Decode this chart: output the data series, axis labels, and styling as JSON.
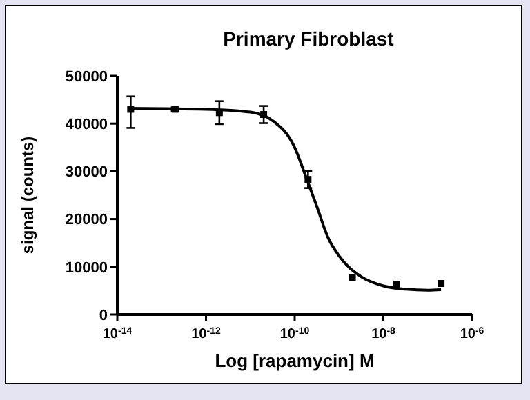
{
  "chart_data": {
    "type": "scatter",
    "title": "Primary Fibroblast",
    "xlabel": "Log [rapamycin] M",
    "ylabel": "signal (counts)",
    "log": "x",
    "xlim": [
      1e-14,
      1e-06
    ],
    "xticks": [
      {
        "value": 1e-14,
        "label": "10$^{-14}$"
      },
      {
        "value": 1e-12,
        "label": "10$^{-12}$"
      },
      {
        "value": 1e-10,
        "label": "10$^{-10}$"
      },
      {
        "value": 1e-08,
        "label": "10$^{-8}$"
      },
      {
        "value": 1e-06,
        "label": "10$^{-6}$"
      }
    ],
    "ylim": [
      0,
      50000
    ],
    "yticks": [
      0,
      10000,
      20000,
      30000,
      40000,
      50000
    ],
    "grid": false,
    "series": [
      {
        "color": "#000000",
        "marker": "square",
        "x": [
          2e-14,
          2e-13,
          2e-12,
          2e-11,
          2e-10,
          2e-09,
          2e-08,
          2e-07
        ],
        "values": [
          43000,
          43000,
          42300,
          41900,
          28300,
          7800,
          6300,
          6500
        ],
        "errors": [
          [
            39100,
            45700
          ],
          [
            42600,
            43400
          ],
          [
            39900,
            44700
          ],
          [
            40100,
            43700
          ],
          [
            26500,
            30100
          ],
          null,
          null,
          null
        ]
      },
      {
        "type": "line",
        "color": "#000000",
        "marker": "none",
        "x": [
          2e-14,
          1e-12,
          1e-11,
          3.2e-11,
          1e-10,
          1.8e-10,
          3.2e-10,
          5.6e-10,
          1e-09,
          3.2e-09,
          1e-08,
          3.2e-08,
          1e-07,
          2e-07
        ],
        "values": [
          43200,
          43000,
          42400,
          40600,
          35000,
          28800,
          22500,
          16200,
          12300,
          7900,
          6000,
          5300,
          5100,
          5200
        ]
      }
    ]
  }
}
